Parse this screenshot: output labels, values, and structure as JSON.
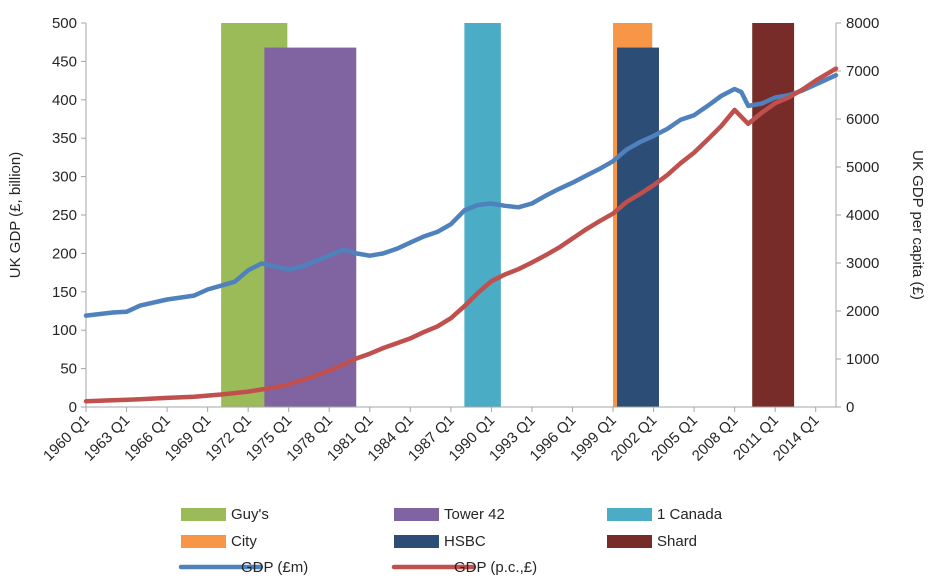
{
  "chart_data": {
    "type": "combo-bar-line",
    "x_start_year": 1960,
    "x_end_year": 2015.5,
    "x_ticks": [
      "1960 Q1",
      "1963 Q1",
      "1966 Q1",
      "1969 Q1",
      "1972 Q1",
      "1975 Q1",
      "1978 Q1",
      "1981 Q1",
      "1984 Q1",
      "1987 Q1",
      "1990 Q1",
      "1993 Q1",
      "1996 Q1",
      "1999 Q1",
      "2002 Q1",
      "2005 Q1",
      "2008 Q1",
      "2011 Q1",
      "2014 Q1"
    ],
    "y_left": {
      "label": "UK GDP (£, billion)",
      "min": 0,
      "max": 500,
      "ticks": [
        0,
        50,
        100,
        150,
        200,
        250,
        300,
        350,
        400,
        450,
        500
      ]
    },
    "y_right": {
      "label": "UK GDP per capita (£)",
      "min": 0,
      "max": 8000,
      "ticks": [
        0,
        1000,
        2000,
        3000,
        4000,
        5000,
        6000,
        7000,
        8000
      ]
    },
    "bars": [
      {
        "name": "Guy's",
        "color": "#9BBB59",
        "start": 1970.0,
        "end": 1974.9,
        "top": 500
      },
      {
        "name": "Tower 42",
        "color": "#8064A2",
        "start": 1973.2,
        "end": 1980.0,
        "top": 468
      },
      {
        "name": "1 Canada",
        "color": "#4BACC6",
        "start": 1988.0,
        "end": 1990.7,
        "top": 500
      },
      {
        "name": "City",
        "color": "#F79646",
        "start": 1999.0,
        "end": 2001.9,
        "top": 500
      },
      {
        "name": "HSBC",
        "color": "#2C4D75",
        "start": 1999.3,
        "end": 2002.4,
        "top": 468
      },
      {
        "name": "Shard",
        "color": "#772C2A",
        "start": 2009.3,
        "end": 2012.4,
        "top": 500
      }
    ],
    "series": [
      {
        "name": "GDP (£m)",
        "axis": "left",
        "color": "#4F81BD",
        "points": [
          [
            1960,
            119
          ],
          [
            1962,
            123
          ],
          [
            1963,
            124
          ],
          [
            1964,
            132
          ],
          [
            1966,
            140
          ],
          [
            1968,
            145
          ],
          [
            1969,
            153
          ],
          [
            1971,
            163
          ],
          [
            1972,
            178
          ],
          [
            1973,
            187
          ],
          [
            1974,
            183
          ],
          [
            1975,
            179
          ],
          [
            1976,
            183
          ],
          [
            1977,
            190
          ],
          [
            1978,
            197
          ],
          [
            1979,
            205
          ],
          [
            1980,
            200
          ],
          [
            1981,
            197
          ],
          [
            1982,
            200
          ],
          [
            1983,
            206
          ],
          [
            1984,
            214
          ],
          [
            1985,
            222
          ],
          [
            1986,
            228
          ],
          [
            1987,
            238
          ],
          [
            1988,
            256
          ],
          [
            1989,
            263
          ],
          [
            1990,
            265
          ],
          [
            1991,
            262
          ],
          [
            1992,
            260
          ],
          [
            1993,
            265
          ],
          [
            1994,
            275
          ],
          [
            1995,
            284
          ],
          [
            1996,
            292
          ],
          [
            1997,
            301
          ],
          [
            1998,
            310
          ],
          [
            1999,
            320
          ],
          [
            2000,
            335
          ],
          [
            2001,
            345
          ],
          [
            2002,
            353
          ],
          [
            2003,
            362
          ],
          [
            2004,
            374
          ],
          [
            2005,
            380
          ],
          [
            2006,
            392
          ],
          [
            2007,
            405
          ],
          [
            2008,
            414
          ],
          [
            2008.5,
            410
          ],
          [
            2009,
            392
          ],
          [
            2010,
            395
          ],
          [
            2011,
            403
          ],
          [
            2012,
            406
          ],
          [
            2013,
            412
          ],
          [
            2014,
            420
          ],
          [
            2015.5,
            432
          ]
        ]
      },
      {
        "name": "GDP (p.c.,£)",
        "axis": "right",
        "color": "#C0504D",
        "points": [
          [
            1960,
            120
          ],
          [
            1962,
            140
          ],
          [
            1964,
            160
          ],
          [
            1966,
            190
          ],
          [
            1968,
            215
          ],
          [
            1970,
            260
          ],
          [
            1972,
            320
          ],
          [
            1974,
            410
          ],
          [
            1975,
            470
          ],
          [
            1976,
            560
          ],
          [
            1977,
            650
          ],
          [
            1978,
            760
          ],
          [
            1979,
            880
          ],
          [
            1980,
            1010
          ],
          [
            1981,
            1110
          ],
          [
            1982,
            1230
          ],
          [
            1983,
            1330
          ],
          [
            1984,
            1430
          ],
          [
            1985,
            1560
          ],
          [
            1986,
            1680
          ],
          [
            1987,
            1850
          ],
          [
            1988,
            2100
          ],
          [
            1989,
            2380
          ],
          [
            1990,
            2620
          ],
          [
            1991,
            2760
          ],
          [
            1992,
            2870
          ],
          [
            1993,
            3010
          ],
          [
            1994,
            3160
          ],
          [
            1995,
            3320
          ],
          [
            1996,
            3510
          ],
          [
            1997,
            3700
          ],
          [
            1998,
            3870
          ],
          [
            1999,
            4030
          ],
          [
            2000,
            4270
          ],
          [
            2001,
            4440
          ],
          [
            2002,
            4620
          ],
          [
            2003,
            4830
          ],
          [
            2004,
            5080
          ],
          [
            2005,
            5300
          ],
          [
            2006,
            5570
          ],
          [
            2007,
            5850
          ],
          [
            2008,
            6190
          ],
          [
            2009,
            5900
          ],
          [
            2010,
            6130
          ],
          [
            2011,
            6330
          ],
          [
            2012,
            6450
          ],
          [
            2013,
            6610
          ],
          [
            2014,
            6800
          ],
          [
            2015.5,
            7050
          ]
        ]
      }
    ],
    "legend": {
      "placement": "bottom",
      "items": [
        {
          "label": "Guy's",
          "kind": "bar",
          "color": "#9BBB59"
        },
        {
          "label": "Tower 42",
          "kind": "bar",
          "color": "#8064A2"
        },
        {
          "label": "1 Canada",
          "kind": "bar",
          "color": "#4BACC6"
        },
        {
          "label": "City",
          "kind": "bar",
          "color": "#F79646"
        },
        {
          "label": "HSBC",
          "kind": "bar",
          "color": "#2C4D75"
        },
        {
          "label": "Shard",
          "kind": "bar",
          "color": "#772C2A"
        },
        {
          "label": "GDP (£m)",
          "kind": "line",
          "color": "#4F81BD"
        },
        {
          "label": "GDP (p.c.,£)",
          "kind": "line",
          "color": "#C0504D"
        }
      ]
    }
  }
}
